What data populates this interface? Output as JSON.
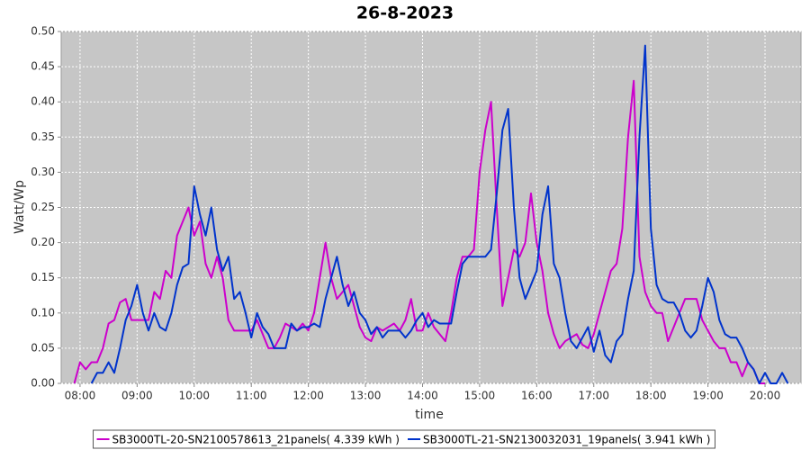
{
  "chart_data": {
    "type": "line",
    "title": "26-8-2023",
    "x_label": "time",
    "y_label": "Watt/Wp",
    "x": [
      7.9,
      8,
      8.1,
      8.2,
      8.3,
      8.4,
      8.5,
      8.6,
      8.7,
      8.8,
      8.9,
      9,
      9.1,
      9.2,
      9.3,
      9.4,
      9.5,
      9.6,
      9.7,
      9.8,
      9.9,
      10,
      10.1,
      10.2,
      10.3,
      10.4,
      10.5,
      10.6,
      10.7,
      10.8,
      10.9,
      11,
      11.1,
      11.2,
      11.3,
      11.4,
      11.5,
      11.6,
      11.7,
      11.8,
      11.9,
      12,
      12.1,
      12.2,
      12.3,
      12.4,
      12.5,
      12.6,
      12.7,
      12.8,
      12.9,
      13,
      13.1,
      13.2,
      13.3,
      13.4,
      13.5,
      13.6,
      13.7,
      13.8,
      13.9,
      14,
      14.1,
      14.2,
      14.3,
      14.4,
      14.5,
      14.6,
      14.7,
      14.8,
      14.9,
      15,
      15.1,
      15.2,
      15.3,
      15.4,
      15.5,
      15.6,
      15.7,
      15.8,
      15.9,
      16,
      16.1,
      16.2,
      16.3,
      16.4,
      16.5,
      16.6,
      16.7,
      16.8,
      16.9,
      17,
      17.1,
      17.2,
      17.3,
      17.4,
      17.5,
      17.6,
      17.7,
      17.8,
      17.9,
      18,
      18.1,
      18.2,
      18.3,
      18.4,
      18.5,
      18.6,
      18.7,
      18.8,
      18.9,
      19,
      19.1,
      19.2,
      19.3,
      19.4,
      19.5,
      19.6,
      19.7,
      19.8,
      19.9,
      20,
      20.1,
      20.2,
      20.3,
      20.4
    ],
    "series": [
      {
        "name": "SB3000TL-20-SN2100578613_21panels( 4.339 kWh )",
        "color": "#cc00cc",
        "values": [
          0,
          0.03,
          0.02,
          0.03,
          0.03,
          0.05,
          0.085,
          0.09,
          0.115,
          0.12,
          0.09,
          0.09,
          0.09,
          0.09,
          0.13,
          0.12,
          0.16,
          0.15,
          0.21,
          0.23,
          0.25,
          0.21,
          0.23,
          0.17,
          0.15,
          0.18,
          0.15,
          0.09,
          0.075,
          0.075,
          0.075,
          0.075,
          0.09,
          0.07,
          0.05,
          0.05,
          0.065,
          0.085,
          0.08,
          0.075,
          0.085,
          0.075,
          0.1,
          0.15,
          0.2,
          0.15,
          0.12,
          0.13,
          0.14,
          0.11,
          0.08,
          0.065,
          0.06,
          0.08,
          0.075,
          0.08,
          0.085,
          0.075,
          0.09,
          0.12,
          0.075,
          0.075,
          0.1,
          0.08,
          0.07,
          0.06,
          0.1,
          0.15,
          0.18,
          0.18,
          0.19,
          0.3,
          0.36,
          0.4,
          0.25,
          0.11,
          0.15,
          0.19,
          0.18,
          0.2,
          0.27,
          0.2,
          0.16,
          0.1,
          0.07,
          0.05,
          0.06,
          0.065,
          0.07,
          0.055,
          0.05,
          0.07,
          0.1,
          0.13,
          0.16,
          0.17,
          0.22,
          0.35,
          0.43,
          0.18,
          0.13,
          0.11,
          0.1,
          0.1,
          0.06,
          0.08,
          0.1,
          0.12,
          0.12,
          0.12,
          0.09,
          0.075,
          0.06,
          0.05,
          0.05,
          0.03,
          0.03,
          0.01,
          0.03,
          0.02,
          0,
          0,
          null,
          null,
          null,
          null
        ]
      },
      {
        "name": "SB3000TL-21-SN2130032031_19panels( 3.941 kWh )",
        "color": "#0033cc",
        "values": [
          null,
          null,
          null,
          0,
          0.015,
          0.015,
          0.03,
          0.015,
          0.05,
          0.09,
          0.11,
          0.14,
          0.1,
          0.075,
          0.1,
          0.08,
          0.075,
          0.1,
          0.14,
          0.165,
          0.17,
          0.28,
          0.24,
          0.21,
          0.25,
          0.19,
          0.16,
          0.18,
          0.12,
          0.13,
          0.1,
          0.065,
          0.1,
          0.08,
          0.07,
          0.05,
          0.05,
          0.05,
          0.085,
          0.075,
          0.08,
          0.08,
          0.085,
          0.08,
          0.12,
          0.15,
          0.18,
          0.14,
          0.11,
          0.13,
          0.1,
          0.09,
          0.07,
          0.08,
          0.065,
          0.075,
          0.075,
          0.075,
          0.065,
          0.075,
          0.09,
          0.1,
          0.08,
          0.09,
          0.085,
          0.085,
          0.085,
          0.13,
          0.17,
          0.18,
          0.18,
          0.18,
          0.18,
          0.19,
          0.27,
          0.36,
          0.39,
          0.25,
          0.15,
          0.12,
          0.14,
          0.16,
          0.24,
          0.28,
          0.17,
          0.15,
          0.1,
          0.06,
          0.05,
          0.065,
          0.08,
          0.045,
          0.075,
          0.04,
          0.03,
          0.06,
          0.07,
          0.12,
          0.16,
          0.35,
          0.48,
          0.22,
          0.14,
          0.12,
          0.115,
          0.115,
          0.1,
          0.075,
          0.065,
          0.075,
          0.11,
          0.15,
          0.13,
          0.09,
          0.07,
          0.065,
          0.065,
          0.05,
          0.03,
          0.02,
          0,
          0.015,
          0,
          0,
          0.015,
          0
        ]
      }
    ],
    "xlim": [
      7.67,
      20.63
    ],
    "xticks": [
      {
        "value": 8,
        "label": "08:00"
      },
      {
        "value": 9,
        "label": "09:00"
      },
      {
        "value": 10,
        "label": "10:00"
      },
      {
        "value": 11,
        "label": "11:00"
      },
      {
        "value": 12,
        "label": "12:00"
      },
      {
        "value": 13,
        "label": "13:00"
      },
      {
        "value": 14,
        "label": "14:00"
      },
      {
        "value": 15,
        "label": "15:00"
      },
      {
        "value": 16,
        "label": "16:00"
      },
      {
        "value": 17,
        "label": "17:00"
      },
      {
        "value": 18,
        "label": "18:00"
      },
      {
        "value": 19,
        "label": "19:00"
      },
      {
        "value": 20,
        "label": "20:00"
      }
    ],
    "ylim": [
      0,
      0.5
    ],
    "yticks": [
      {
        "value": 0,
        "label": "0.00"
      },
      {
        "value": 0.05,
        "label": "0.05"
      },
      {
        "value": 0.1,
        "label": "0.10"
      },
      {
        "value": 0.15,
        "label": "0.15"
      },
      {
        "value": 0.2,
        "label": "0.20"
      },
      {
        "value": 0.25,
        "label": "0.25"
      },
      {
        "value": 0.3,
        "label": "0.30"
      },
      {
        "value": 0.35,
        "label": "0.35"
      },
      {
        "value": 0.4,
        "label": "0.40"
      },
      {
        "value": 0.45,
        "label": "0.45"
      },
      {
        "value": 0.5,
        "label": "0.50"
      }
    ],
    "grid": true,
    "legend": "bottom"
  }
}
